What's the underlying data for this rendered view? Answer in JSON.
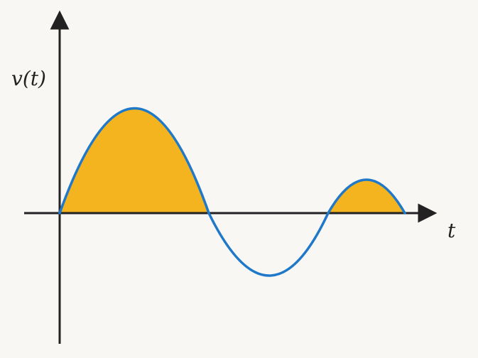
{
  "diagram": {
    "y_axis_label": "v(t)",
    "x_axis_label": "t",
    "colors": {
      "curve": "#1f78c8",
      "fill": "#f4b41f",
      "axis": "#222222",
      "background": "#f8f7f4"
    },
    "shaded_region": "v(t) > 0"
  }
}
